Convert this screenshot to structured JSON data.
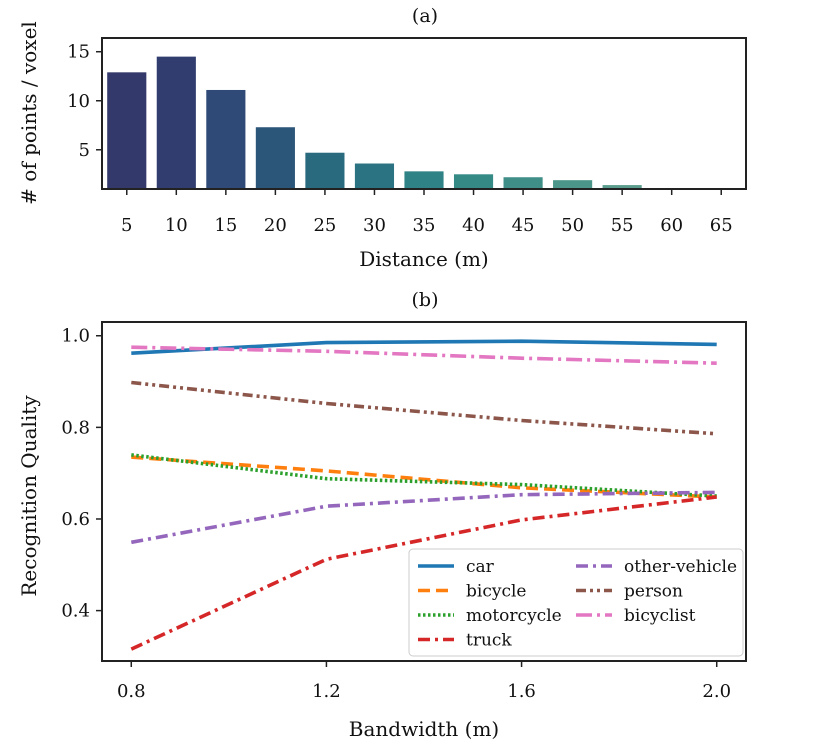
{
  "chart_data": [
    {
      "type": "bar",
      "panel_label": "(a)",
      "title": "(a)",
      "xlabel": "Distance (m)",
      "ylabel": "# of points / voxel",
      "categories": [
        "5",
        "10",
        "15",
        "20",
        "25",
        "30",
        "35",
        "40",
        "45",
        "50",
        "55",
        "60",
        "65"
      ],
      "values": [
        12.9,
        14.5,
        11.1,
        7.3,
        4.7,
        3.6,
        2.8,
        2.5,
        2.2,
        1.9,
        1.4,
        1.1,
        1.1
      ],
      "yticks": [
        5,
        10,
        15
      ],
      "ylim": [
        1,
        16.4
      ],
      "colors": [
        "#33396a",
        "#313d6f",
        "#2f4a76",
        "#2c5679",
        "#2a6a7f",
        "#2b7382",
        "#2f8285",
        "#358a86",
        "#408e88",
        "#4b958a",
        "#5a9c8d",
        "#66a291",
        "#73a895"
      ],
      "grid": false
    },
    {
      "type": "line",
      "panel_label": "(b)",
      "title": "(b)",
      "xlabel": "Bandwidth (m)",
      "ylabel": "Recognition Quality",
      "x": [
        0.8,
        1.2,
        1.6,
        2.0
      ],
      "xticks": [
        "0.8",
        "1.2",
        "1.6",
        "2.0"
      ],
      "yticks": [
        "0.4",
        "0.6",
        "0.8",
        "1.0"
      ],
      "xlim": [
        0.74,
        2.06
      ],
      "ylim": [
        0.29,
        1.03
      ],
      "legend_position": "lower-right",
      "series": [
        {
          "name": "car",
          "values": [
            0.962,
            0.985,
            0.988,
            0.981
          ],
          "color": "#1f77b4",
          "dash": "solid"
        },
        {
          "name": "bicycle",
          "values": [
            0.735,
            0.705,
            0.668,
            0.648
          ],
          "color": "#ff7f0e",
          "dash": "dashed"
        },
        {
          "name": "motorcycle",
          "values": [
            0.74,
            0.688,
            0.675,
            0.65
          ],
          "color": "#2ca02c",
          "dash": "dotted"
        },
        {
          "name": "truck",
          "values": [
            0.316,
            0.512,
            0.598,
            0.648
          ],
          "color": "#d62728",
          "dash": "dashdot"
        },
        {
          "name": "other-vehicle",
          "values": [
            0.549,
            0.628,
            0.653,
            0.658
          ],
          "color": "#9467bd",
          "dash": "dashdot"
        },
        {
          "name": "person",
          "values": [
            0.898,
            0.852,
            0.815,
            0.786
          ],
          "color": "#8c564b",
          "dash": "dashdotdot"
        },
        {
          "name": "bicyclist",
          "values": [
            0.975,
            0.966,
            0.951,
            0.94
          ],
          "color": "#e377c2",
          "dash": "longdashdot"
        }
      ]
    }
  ]
}
